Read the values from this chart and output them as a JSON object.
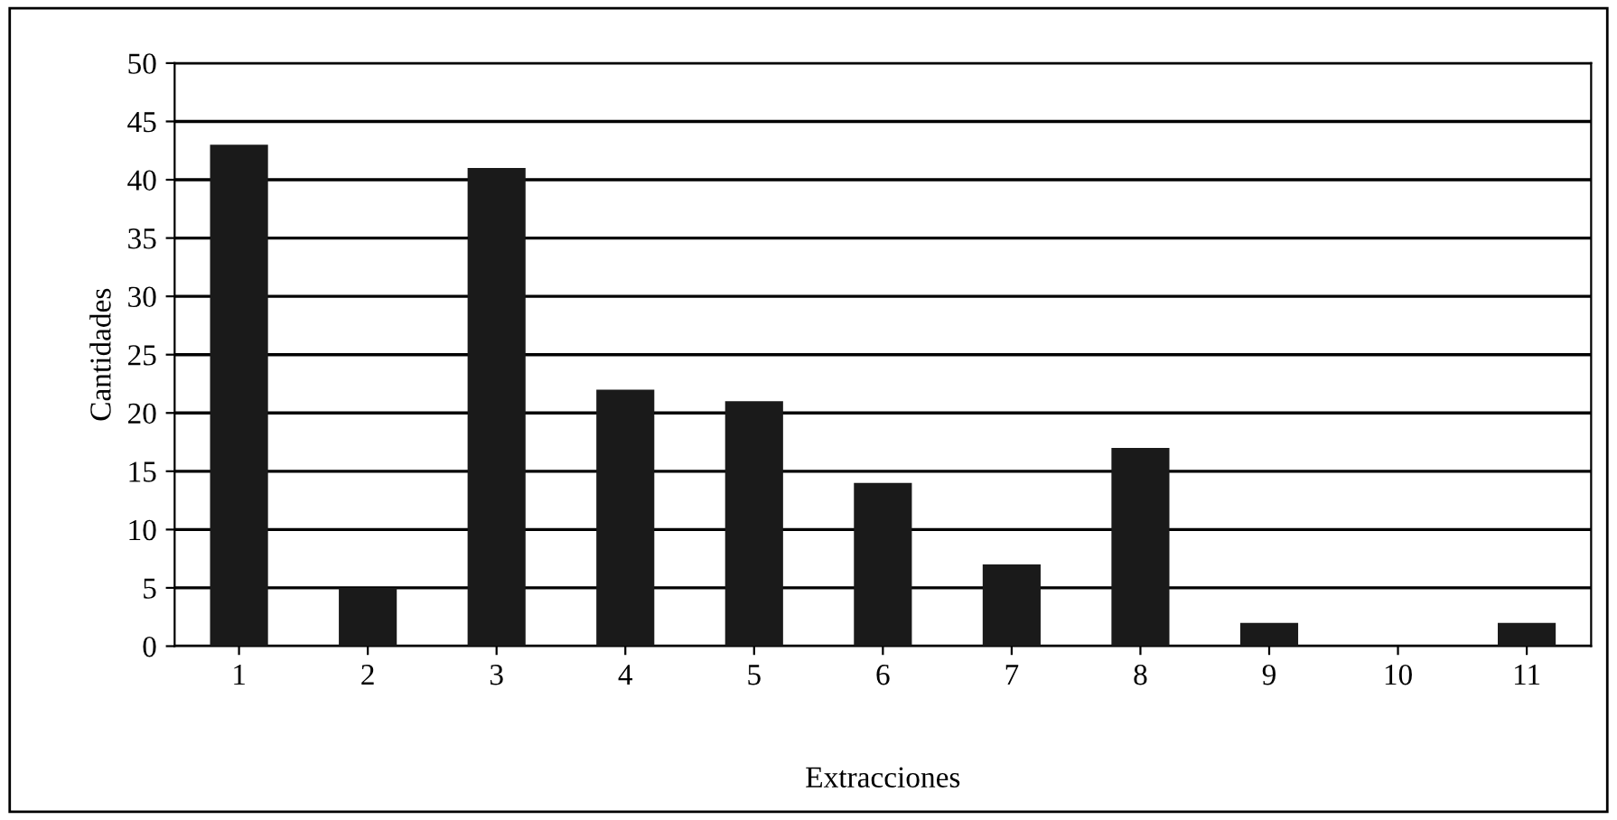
{
  "chart_data": {
    "type": "bar",
    "xlabel": "Extracciones",
    "ylabel": "Cantidades",
    "categories": [
      "1",
      "2",
      "3",
      "4",
      "5",
      "6",
      "7",
      "8",
      "9",
      "10",
      "11"
    ],
    "values": [
      43,
      5,
      41,
      22,
      21,
      14,
      7,
      17,
      2,
      0,
      2
    ],
    "color": "#1a1a1a",
    "ylim": [
      0,
      50
    ],
    "yticks": [
      0,
      5,
      10,
      15,
      20,
      25,
      30,
      35,
      40,
      45,
      50
    ],
    "grid": "y",
    "legend": false
  }
}
